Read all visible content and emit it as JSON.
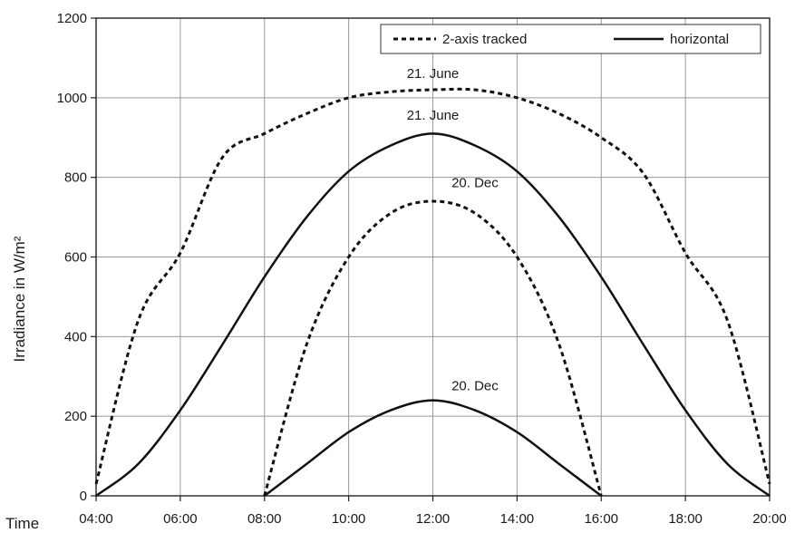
{
  "chart_data": {
    "type": "line",
    "xlabel": "Time",
    "ylabel": "Irradiance in W/m²",
    "xlim": [
      "04:00",
      "20:00"
    ],
    "ylim": [
      0,
      1200
    ],
    "x_ticks": [
      "04:00",
      "06:00",
      "08:00",
      "10:00",
      "12:00",
      "14:00",
      "16:00",
      "18:00",
      "20:00"
    ],
    "y_ticks": [
      "0",
      "200",
      "400",
      "600",
      "800",
      "1000",
      "1200"
    ],
    "grid": true,
    "legend_position": "top-right",
    "legend": [
      {
        "label": "2-axis tracked",
        "style": "dashed"
      },
      {
        "label": "horizontal",
        "style": "solid"
      }
    ],
    "series": [
      {
        "legend": "2-axis tracked",
        "annotation": "21. June",
        "style": "dashed",
        "points": [
          [
            "04:00",
            30
          ],
          [
            "05:00",
            440
          ],
          [
            "06:00",
            610
          ],
          [
            "07:00",
            850
          ],
          [
            "08:00",
            910
          ],
          [
            "09:00",
            960
          ],
          [
            "10:00",
            1000
          ],
          [
            "11:00",
            1015
          ],
          [
            "12:00",
            1020
          ],
          [
            "13:00",
            1020
          ],
          [
            "14:00",
            1000
          ],
          [
            "15:00",
            960
          ],
          [
            "16:00",
            900
          ],
          [
            "17:00",
            810
          ],
          [
            "18:00",
            610
          ],
          [
            "19:00",
            440
          ],
          [
            "20:00",
            30
          ]
        ]
      },
      {
        "legend": "horizontal",
        "annotation": "21. June",
        "style": "solid",
        "points": [
          [
            "04:00",
            0
          ],
          [
            "05:00",
            80
          ],
          [
            "06:00",
            215
          ],
          [
            "07:00",
            380
          ],
          [
            "08:00",
            550
          ],
          [
            "09:00",
            700
          ],
          [
            "10:00",
            815
          ],
          [
            "11:00",
            880
          ],
          [
            "12:00",
            910
          ],
          [
            "13:00",
            880
          ],
          [
            "14:00",
            815
          ],
          [
            "15:00",
            700
          ],
          [
            "16:00",
            550
          ],
          [
            "17:00",
            380
          ],
          [
            "18:00",
            215
          ],
          [
            "19:00",
            80
          ],
          [
            "20:00",
            0
          ]
        ]
      },
      {
        "legend": "2-axis tracked",
        "annotation": "20. Dec",
        "style": "dashed",
        "points": [
          [
            "08:00",
            0
          ],
          [
            "09:00",
            380
          ],
          [
            "10:00",
            600
          ],
          [
            "11:00",
            710
          ],
          [
            "12:00",
            740
          ],
          [
            "13:00",
            710
          ],
          [
            "14:00",
            600
          ],
          [
            "15:00",
            380
          ],
          [
            "16:00",
            0
          ]
        ]
      },
      {
        "legend": "horizontal",
        "annotation": "20. Dec",
        "style": "solid",
        "points": [
          [
            "08:00",
            0
          ],
          [
            "09:00",
            80
          ],
          [
            "10:00",
            160
          ],
          [
            "11:00",
            215
          ],
          [
            "12:00",
            240
          ],
          [
            "13:00",
            215
          ],
          [
            "14:00",
            160
          ],
          [
            "15:00",
            80
          ],
          [
            "16:00",
            0
          ]
        ]
      }
    ],
    "annotations": [
      {
        "text": "21. June",
        "x": "12:00",
        "y": 1050
      },
      {
        "text": "21. June",
        "x": "12:00",
        "y": 945
      },
      {
        "text": "20. Dec",
        "x": "13:00",
        "y": 775
      },
      {
        "text": "20. Dec",
        "x": "13:00",
        "y": 265
      }
    ]
  }
}
